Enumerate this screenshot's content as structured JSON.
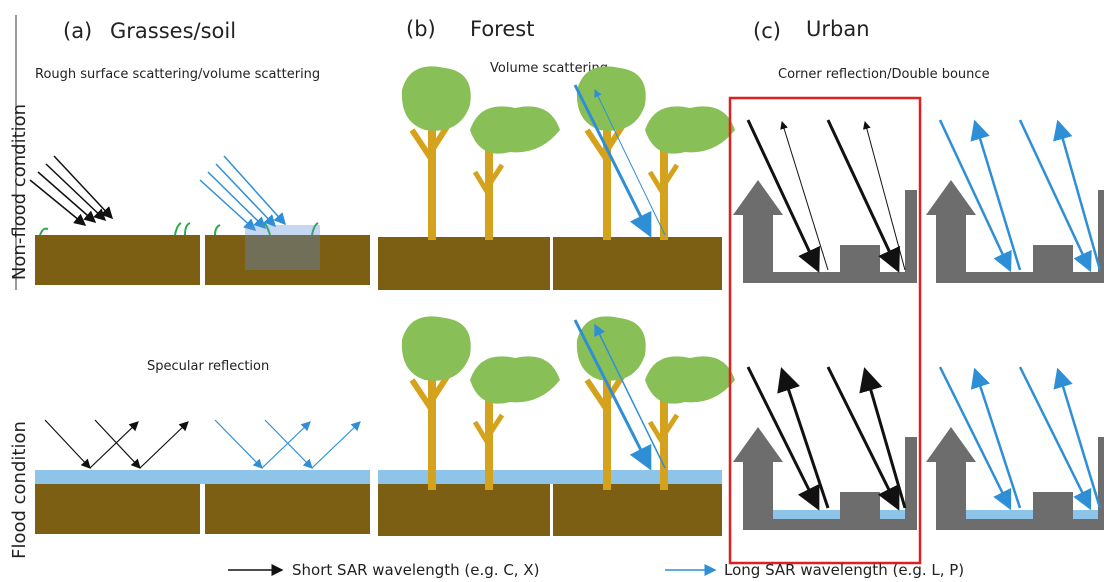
{
  "columns": [
    {
      "letter": "(a)",
      "title": "Grasses/soil",
      "non_flood_mechanism": "Rough surface scattering/volume scattering",
      "flood_mechanism": "Specular reflection"
    },
    {
      "letter": "(b)",
      "title": "Forest",
      "non_flood_mechanism": "Volume scattering"
    },
    {
      "letter": "(c)",
      "title": "Urban",
      "non_flood_mechanism": "Corner reflection/Double bounce"
    }
  ],
  "rows": [
    "Non-flood condition",
    "Flood condition"
  ],
  "legend": [
    "Short SAR wavelength (e.g. C, X)",
    "Long SAR wavelength (e.g. L, P)"
  ]
}
